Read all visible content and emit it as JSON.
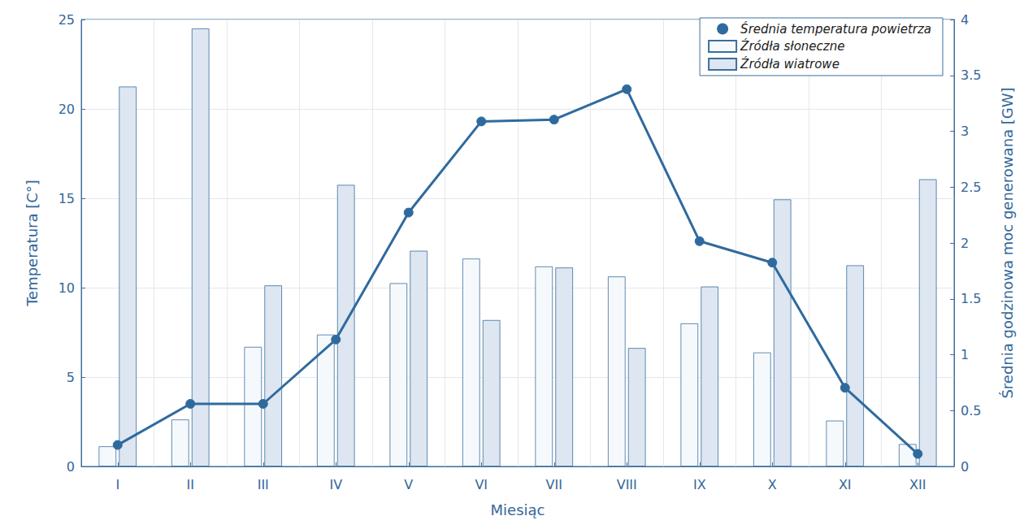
{
  "chart_data": {
    "type": "bar",
    "x_label": "Miesiąc",
    "y_label": "Temperatura [C°]",
    "y2_label": "Średnia godzinowa moc generowana [GW]",
    "categories": [
      "I",
      "II",
      "III",
      "IV",
      "V",
      "VI",
      "VII",
      "VIII",
      "IX",
      "X",
      "XI",
      "XII"
    ],
    "series": [
      {
        "name": "Średnia temperatura powietrza",
        "type": "line",
        "marker": "circle",
        "line_style": "solid",
        "color": "#2f6a9e",
        "values": [
          1.2,
          3.5,
          3.5,
          7.1,
          14.2,
          19.3,
          19.4,
          21.1,
          12.6,
          11.4,
          4.4,
          0.7
        ]
      },
      {
        "name": "Źródła słoneczne",
        "type": "bar",
        "axis": "y2",
        "color": "#f6f9fc",
        "values": [
          0.18,
          0.42,
          1.07,
          1.18,
          1.64,
          1.86,
          1.79,
          1.7,
          1.28,
          1.02,
          0.41,
          0.2
        ]
      },
      {
        "name": "Źródła wiatrowe",
        "type": "bar",
        "axis": "y2",
        "color": "#dde6f1",
        "values": [
          3.4,
          3.92,
          1.62,
          2.52,
          1.93,
          1.31,
          1.78,
          1.06,
          1.61,
          2.39,
          1.8,
          2.57
        ]
      }
    ],
    "ylim": [
      0,
      25
    ],
    "yticks": [
      0,
      5,
      10,
      15,
      20,
      25
    ],
    "y2lim": [
      0,
      4
    ],
    "y2ticks": [
      0,
      0.5,
      1,
      1.5,
      2,
      2.5,
      3,
      3.5,
      4
    ],
    "grid": true,
    "legend": "upper-right"
  }
}
